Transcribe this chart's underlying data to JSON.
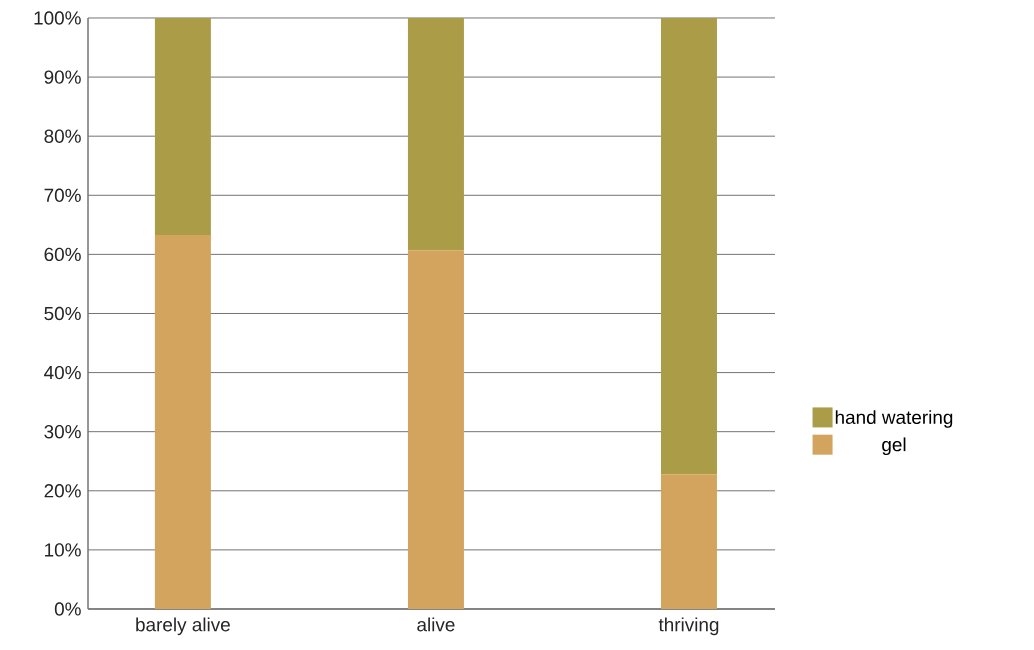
{
  "chart_data": {
    "type": "bar",
    "stacked": true,
    "categories": [
      "barely alive",
      "alive",
      "thriving"
    ],
    "series": [
      {
        "name": "gel",
        "color": "#d3a45e",
        "values": [
          63.3,
          60.7,
          22.8
        ]
      },
      {
        "name": "hand watering",
        "color": "#ab9c48",
        "values": [
          36.7,
          39.3,
          77.2
        ]
      }
    ],
    "ylim": [
      0,
      100
    ],
    "yticks": [
      {
        "value": 0,
        "label": "0%"
      },
      {
        "value": 10,
        "label": "10%"
      },
      {
        "value": 20,
        "label": "20%"
      },
      {
        "value": 30,
        "label": "30%"
      },
      {
        "value": 40,
        "label": "40%"
      },
      {
        "value": 50,
        "label": "50%"
      },
      {
        "value": 60,
        "label": "60%"
      },
      {
        "value": 70,
        "label": "70%"
      },
      {
        "value": 80,
        "label": "80%"
      },
      {
        "value": 90,
        "label": "90%"
      },
      {
        "value": 100,
        "label": "100%"
      }
    ],
    "grid": "y",
    "legend": "right"
  }
}
